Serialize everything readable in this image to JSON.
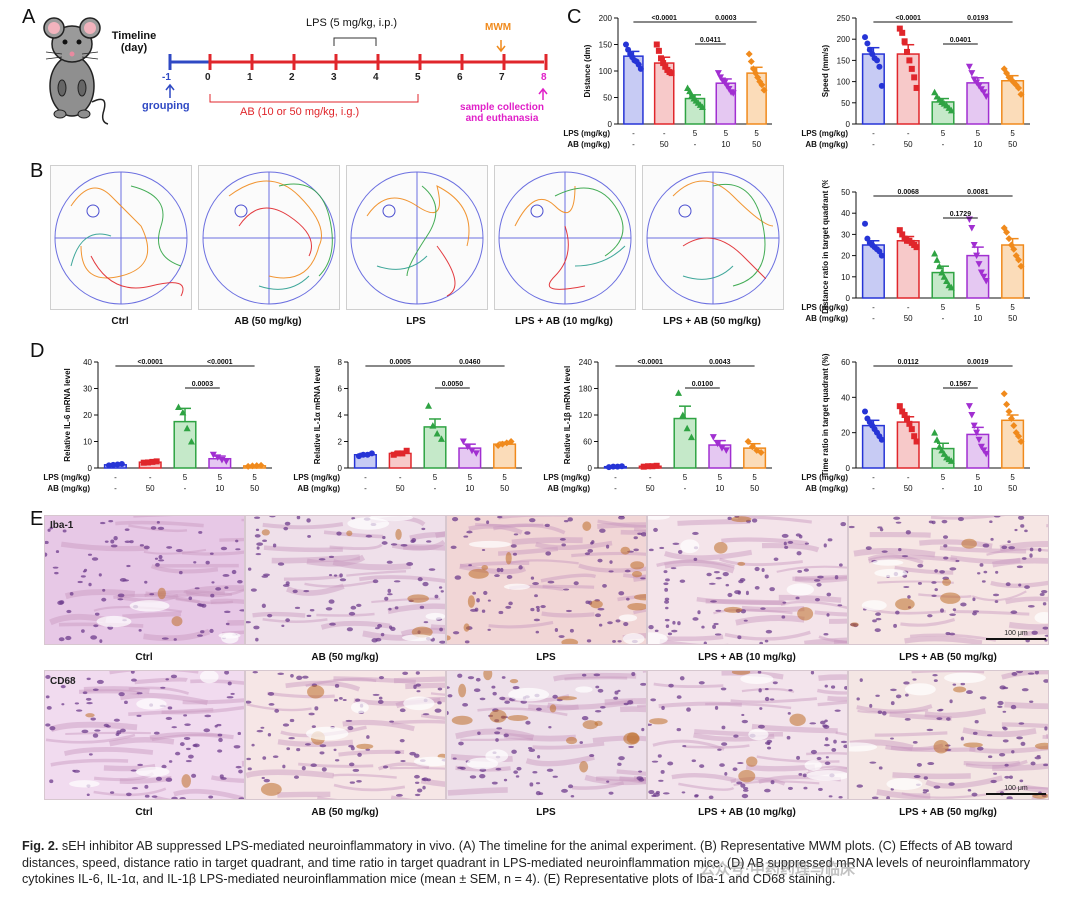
{
  "panels": {
    "A": "A",
    "B": "B",
    "C": "C",
    "D": "D",
    "E": "E"
  },
  "timeline": {
    "label_line1": "Timeline",
    "label_line2": "(day)",
    "days": [
      "-1",
      "0",
      "1",
      "2",
      "3",
      "4",
      "5",
      "6",
      "7",
      "8"
    ],
    "lps": "LPS (5 mg/kg, i.p.)",
    "mwm": "MWM",
    "grouping": "grouping",
    "ab": "AB (10 or 50 mg/kg, i.g.)",
    "sample_line1": "sample collection",
    "sample_line2": "and euthanasia"
  },
  "groups": [
    "Ctrl",
    "AB (50 mg/kg)",
    "LPS",
    "LPS + AB (10 mg/kg)",
    "LPS + AB (50 mg/kg)"
  ],
  "colors": {
    "ctrl": "#2634d6",
    "ab50": "#e0262b",
    "lps": "#2fa343",
    "lps_ab10": "#a12fd1",
    "lps_ab50": "#f08a1c",
    "ctrl_fill": "#c7cbf4",
    "ab50_fill": "#f7c9c9",
    "lps_fill": "#c5e9c9",
    "lps_ab10_fill": "#e5c8f2",
    "lps_ab50_fill": "#fbdcb9",
    "timeline_blue": "#2f49c4",
    "timeline_red": "#e0262b",
    "mwm_orange": "#f08a1c",
    "magenta": "#e020c8"
  },
  "treatment_rows": {
    "lps_label": "LPS (mg/kg)",
    "ab_label": "AB (mg/kg)",
    "lps_values": [
      "-",
      "-",
      "5",
      "5",
      "5"
    ],
    "ab_values": [
      "-",
      "50",
      "-",
      "10",
      "50"
    ]
  },
  "chart_data": [
    {
      "id": "C-distance",
      "type": "bar",
      "ylabel": "Distance (dm)",
      "ylim": [
        0,
        200
      ],
      "yticks": [
        "0",
        "50",
        "100",
        "150",
        "200"
      ],
      "categories": [
        "Ctrl",
        "AB (50 mg/kg)",
        "LPS",
        "LPS + AB (10 mg/kg)",
        "LPS + AB (50 mg/kg)"
      ],
      "values": [
        128,
        115,
        48,
        77,
        96
      ],
      "errors": [
        9,
        11,
        7,
        8,
        11
      ],
      "points": [
        [
          150,
          140,
          132,
          126,
          120,
          118,
          112,
          104
        ],
        [
          150,
          138,
          124,
          115,
          108,
          102,
          98,
          96
        ],
        [
          68,
          62,
          54,
          48,
          44,
          40,
          36,
          32
        ],
        [
          96,
          88,
          82,
          78,
          72,
          66,
          60,
          58
        ],
        [
          132,
          118,
          104,
          96,
          88,
          80,
          74,
          64
        ]
      ],
      "brackets": [
        {
          "from": 0,
          "to": 2,
          "label": "<0.0001",
          "level": 0
        },
        {
          "from": 2,
          "to": 4,
          "label": "0.0003",
          "level": 0
        },
        {
          "from": 2,
          "to": 3,
          "label": "0.0411",
          "level": 1
        }
      ]
    },
    {
      "id": "C-speed",
      "type": "bar",
      "ylabel": "Speed (mm/s)",
      "ylim": [
        0,
        250
      ],
      "yticks": [
        "0",
        "50",
        "100",
        "150",
        "200",
        "250"
      ],
      "categories": [
        "Ctrl",
        "AB (50 mg/kg)",
        "LPS",
        "LPS + AB (10 mg/kg)",
        "LPS + AB (50 mg/kg)"
      ],
      "values": [
        165,
        165,
        52,
        97,
        102
      ],
      "errors": [
        15,
        22,
        8,
        12,
        12
      ],
      "points": [
        [
          205,
          190,
          175,
          165,
          155,
          150,
          135,
          90
        ],
        [
          225,
          215,
          195,
          170,
          150,
          130,
          110,
          85
        ],
        [
          75,
          65,
          58,
          52,
          48,
          44,
          38,
          32
        ],
        [
          135,
          120,
          105,
          98,
          90,
          82,
          75,
          65
        ],
        [
          130,
          120,
          110,
          104,
          98,
          92,
          85,
          70
        ]
      ],
      "brackets": [
        {
          "from": 0,
          "to": 2,
          "label": "<0.0001",
          "level": 0
        },
        {
          "from": 2,
          "to": 4,
          "label": "0.0193",
          "level": 0
        },
        {
          "from": 2,
          "to": 3,
          "label": "0.0401",
          "level": 1
        }
      ]
    },
    {
      "id": "C-distance-ratio",
      "type": "bar",
      "ylabel": "Distance ratio in target quadrant (%)",
      "ylim": [
        0,
        50
      ],
      "yticks": [
        "0",
        "10",
        "20",
        "30",
        "40",
        "50"
      ],
      "categories": [
        "Ctrl",
        "AB (50 mg/kg)",
        "LPS",
        "LPS + AB (10 mg/kg)",
        "LPS + AB (50 mg/kg)"
      ],
      "values": [
        25,
        27,
        12,
        20,
        25
      ],
      "errors": [
        2,
        2,
        3,
        4,
        3
      ],
      "points": [
        [
          35,
          28,
          26,
          25,
          24,
          23,
          22,
          20
        ],
        [
          32,
          30,
          28,
          27,
          27,
          26,
          25,
          24
        ],
        [
          21,
          18,
          15,
          12,
          10,
          8,
          6,
          5
        ],
        [
          37,
          33,
          25,
          20,
          16,
          12,
          10,
          8
        ],
        [
          33,
          31,
          28,
          25,
          23,
          20,
          18,
          15
        ]
      ],
      "brackets": [
        {
          "from": 0,
          "to": 2,
          "label": "0.0068",
          "level": 0
        },
        {
          "from": 2,
          "to": 4,
          "label": "0.0081",
          "level": 0
        },
        {
          "from": 2,
          "to": 3,
          "label": "0.1729",
          "level": 1
        }
      ]
    },
    {
      "id": "C-time-ratio",
      "type": "bar",
      "ylabel": "Time ratio in target quadrant (%)",
      "ylim": [
        0,
        60
      ],
      "yticks": [
        "0",
        "20",
        "40",
        "60"
      ],
      "categories": [
        "Ctrl",
        "AB (50 mg/kg)",
        "LPS",
        "LPS + AB (10 mg/kg)",
        "LPS + AB (50 mg/kg)"
      ],
      "values": [
        24,
        26,
        11,
        19,
        27
      ],
      "errors": [
        3,
        3,
        3,
        4,
        3
      ],
      "points": [
        [
          32,
          28,
          26,
          24,
          22,
          20,
          18,
          16
        ],
        [
          35,
          32,
          30,
          28,
          25,
          22,
          18,
          15
        ],
        [
          20,
          16,
          12,
          10,
          8,
          6,
          5,
          4
        ],
        [
          35,
          30,
          24,
          20,
          16,
          12,
          10,
          8
        ],
        [
          42,
          36,
          32,
          28,
          24,
          20,
          18,
          15
        ]
      ],
      "brackets": [
        {
          "from": 0,
          "to": 2,
          "label": "0.0112",
          "level": 0
        },
        {
          "from": 2,
          "to": 4,
          "label": "0.0019",
          "level": 0
        },
        {
          "from": 2,
          "to": 3,
          "label": "0.1567",
          "level": 1
        }
      ]
    },
    {
      "id": "D-IL6",
      "type": "bar",
      "ylabel": "Relative IL-6 mRNA level",
      "ylim": [
        0,
        40
      ],
      "yticks": [
        "0",
        "10",
        "20",
        "30",
        "40"
      ],
      "categories": [
        "Ctrl",
        "AB (50 mg/kg)",
        "LPS",
        "LPS + AB (10 mg/kg)",
        "LPS + AB (50 mg/kg)"
      ],
      "values": [
        1.2,
        2.2,
        17.5,
        3.5,
        0.8
      ],
      "errors": [
        0.3,
        0.3,
        5,
        1,
        0.2
      ],
      "points": [
        [
          1.0,
          1.2,
          1.3,
          1.5
        ],
        [
          2.0,
          2.1,
          2.3,
          2.5
        ],
        [
          23,
          21,
          15,
          10
        ],
        [
          5,
          4,
          3,
          2.5
        ],
        [
          0.6,
          0.8,
          0.9,
          1.0
        ]
      ],
      "brackets": [
        {
          "from": 0,
          "to": 2,
          "label": "<0.0001",
          "level": 0
        },
        {
          "from": 2,
          "to": 4,
          "label": "<0.0001",
          "level": 0
        },
        {
          "from": 2,
          "to": 3,
          "label": "0.0003",
          "level": 1
        }
      ]
    },
    {
      "id": "D-IL1a",
      "type": "bar",
      "ylabel": "Relative IL-1α mRNA level",
      "ylim": [
        0,
        8
      ],
      "yticks": [
        "0",
        "2",
        "4",
        "6",
        "8"
      ],
      "categories": [
        "Ctrl",
        "AB (50 mg/kg)",
        "LPS",
        "LPS + AB (10 mg/kg)",
        "LPS + AB (50 mg/kg)"
      ],
      "values": [
        1.0,
        1.1,
        3.1,
        1.5,
        1.8
      ],
      "errors": [
        0.1,
        0.15,
        0.6,
        0.3,
        0.15
      ],
      "points": [
        [
          0.9,
          1.0,
          1.0,
          1.1
        ],
        [
          1.0,
          1.1,
          1.1,
          1.3
        ],
        [
          4.7,
          3.2,
          2.6,
          2.2
        ],
        [
          2.0,
          1.6,
          1.3,
          1.1
        ],
        [
          1.7,
          1.8,
          1.9,
          2.0
        ]
      ],
      "brackets": [
        {
          "from": 0,
          "to": 2,
          "label": "0.0005",
          "level": 0
        },
        {
          "from": 2,
          "to": 4,
          "label": "0.0460",
          "level": 0
        },
        {
          "from": 2,
          "to": 3,
          "label": "0.0050",
          "level": 1
        }
      ]
    },
    {
      "id": "D-IL1b",
      "type": "bar",
      "ylabel": "Relative IL-1β mRNA level",
      "ylim": [
        0,
        240
      ],
      "yticks": [
        "0",
        "60",
        "120",
        "180",
        "240"
      ],
      "categories": [
        "Ctrl",
        "AB (50 mg/kg)",
        "LPS",
        "LPS + AB (10 mg/kg)",
        "LPS + AB (50 mg/kg)"
      ],
      "values": [
        3,
        4,
        112,
        52,
        45
      ],
      "errors": [
        1,
        1,
        28,
        10,
        10
      ],
      "points": [
        [
          2,
          3,
          3,
          4
        ],
        [
          3,
          4,
          4,
          5
        ],
        [
          170,
          120,
          90,
          70
        ],
        [
          70,
          55,
          45,
          40
        ],
        [
          60,
          48,
          40,
          35
        ]
      ],
      "brackets": [
        {
          "from": 0,
          "to": 2,
          "label": "<0.0001",
          "level": 0
        },
        {
          "from": 2,
          "to": 4,
          "label": "0.0043",
          "level": 0
        },
        {
          "from": 2,
          "to": 3,
          "label": "0.0100",
          "level": 1
        }
      ]
    }
  ],
  "histology": {
    "iba1": "Iba-1",
    "cd68": "CD68",
    "scale_bar": "100 μm"
  },
  "caption": {
    "fig": "Fig. 2.",
    "text": "sEH inhibitor AB suppressed LPS-mediated neuroinflammatory in vivo. (A) The timeline for the animal experiment. (B) Representative MWM plots. (C) Effects of AB toward distances, speed, distance ratio in target quadrant, and time ratio in target quadrant in LPS-mediated neuroinflammation mice. (D) AB suppressed mRNA levels of neuroinflammatory cytokines IL-6, IL-1α, and IL-1β LPS-mediated neuroinflammation mice (mean ± SEM, n = 4). (E) Representative plots of Iba-1 and CD68 staining."
  },
  "watermark": "公众号·中药药理与临床"
}
